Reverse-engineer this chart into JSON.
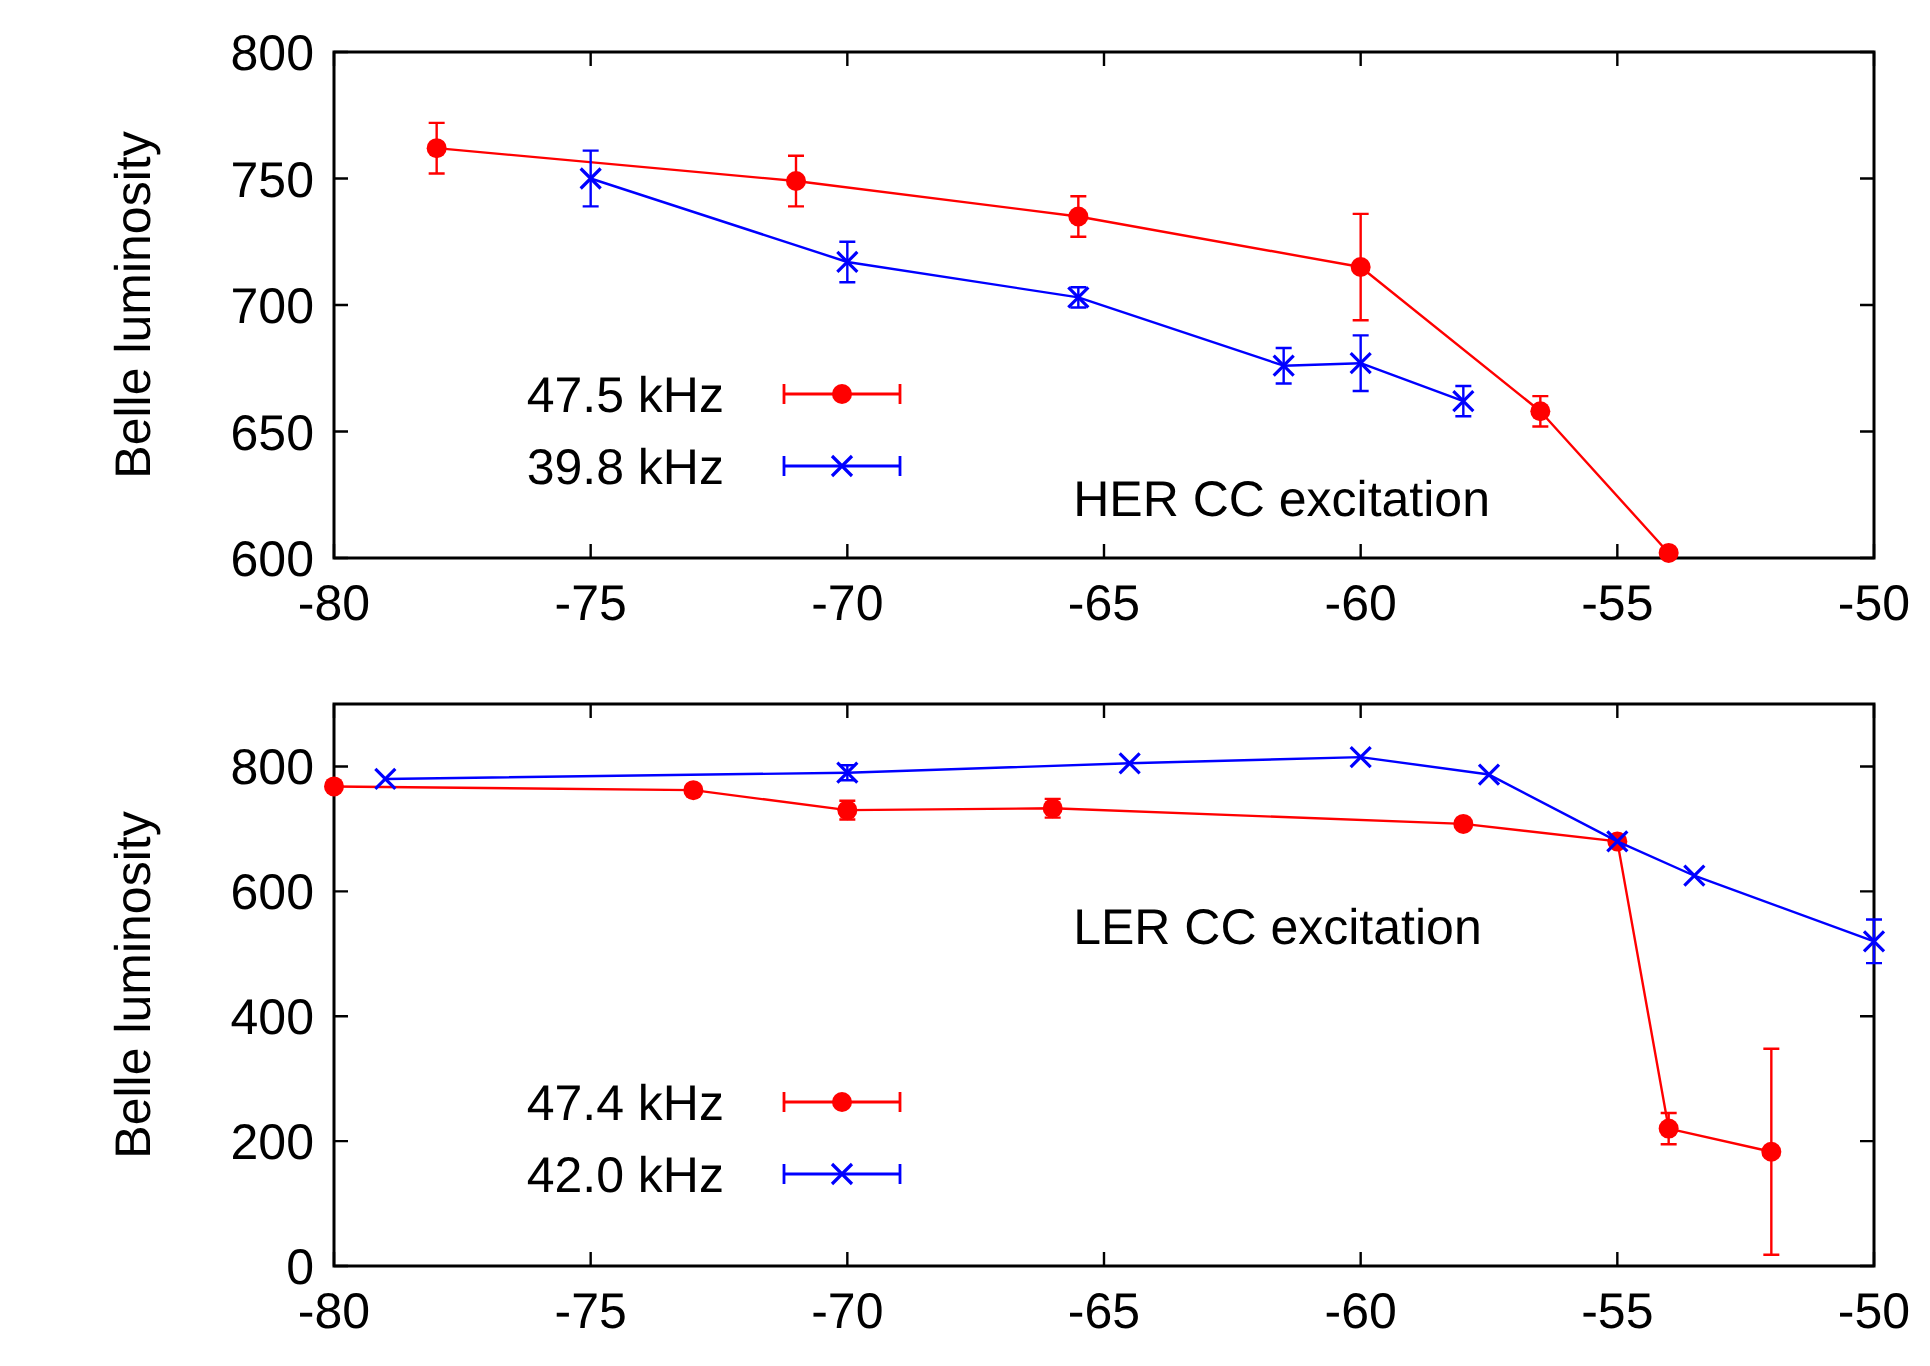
{
  "chart_data": [
    {
      "type": "line",
      "ylabel": "Belle luminosity",
      "xlim": [
        -80,
        -50
      ],
      "xticks": [
        -80,
        -75,
        -70,
        -65,
        -60,
        -55,
        -50
      ],
      "ylim": [
        600,
        800
      ],
      "yticks": [
        600,
        650,
        700,
        750,
        800
      ],
      "grid": false,
      "legend": "bottom left",
      "annotations": [
        "HER CC excitation"
      ],
      "series": [
        {
          "name": "47.5 kHz",
          "color": "#ff0000",
          "marker": "circle",
          "x": [
            -78,
            -71,
            -65.5,
            -60,
            -56.5,
            -54
          ],
          "values": [
            762,
            749,
            735,
            715,
            658,
            602
          ],
          "errors": [
            10,
            10,
            8,
            21,
            6,
            null
          ]
        },
        {
          "name": "39.8 kHz",
          "color": "#0000ff",
          "marker": "cross",
          "x": [
            -75,
            -70,
            -65.5,
            -61.5,
            -60,
            -58
          ],
          "values": [
            750,
            717,
            703,
            676,
            677,
            662
          ],
          "errors": [
            11,
            8,
            4,
            7,
            11,
            6
          ]
        }
      ]
    },
    {
      "type": "line",
      "ylabel": "Belle luminosity",
      "xlim": [
        -80,
        -50
      ],
      "xticks": [
        -80,
        -75,
        -70,
        -65,
        -60,
        -55,
        -50
      ],
      "ylim": [
        0,
        900
      ],
      "yticks": [
        0,
        200,
        400,
        600,
        800
      ],
      "grid": false,
      "legend": "bottom left",
      "annotations": [
        "LER CC excitation"
      ],
      "series": [
        {
          "name": "47.4 kHz",
          "color": "#ff0000",
          "marker": "circle",
          "x": [
            -80,
            -73,
            -70,
            -66,
            -58,
            -55,
            -54,
            -52
          ],
          "values": [
            768,
            762,
            730,
            733,
            708,
            680,
            220,
            183
          ],
          "errors": [
            null,
            null,
            15,
            15,
            null,
            null,
            25,
            165
          ]
        },
        {
          "name": "42.0 kHz",
          "color": "#0000ff",
          "marker": "cross",
          "x": [
            -79,
            -70,
            -64.5,
            -60,
            -57.5,
            -55,
            -53.5,
            -50
          ],
          "values": [
            780,
            790,
            805,
            815,
            787,
            680,
            625,
            520
          ],
          "errors": [
            null,
            12,
            null,
            null,
            null,
            null,
            null,
            35
          ]
        }
      ]
    }
  ]
}
